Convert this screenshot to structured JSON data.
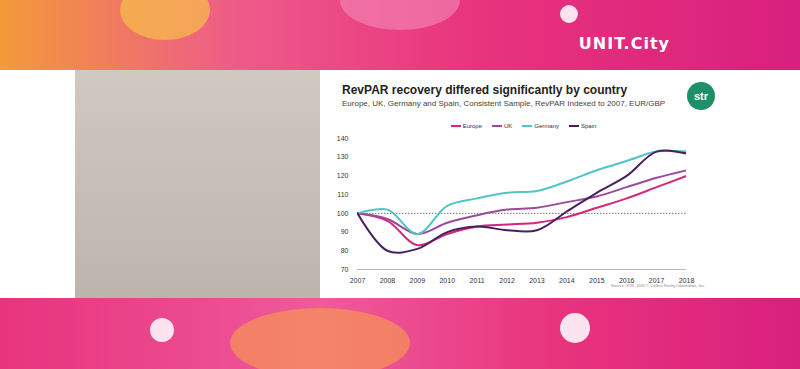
{
  "page": {
    "brand": "UNIT.City",
    "logo": "str",
    "source": "Source: STR. 2020 © CoStar Realty Information, Inc."
  },
  "chart_data": {
    "type": "line",
    "title": "RevPAR recovery differed significantly by country",
    "subtitle": "Europe, UK, Germany and Spain, Consistent Sample, RevPAR Indexed to 2007, EUR/GBP",
    "x": [
      2007,
      2008,
      2009,
      2010,
      2011,
      2012,
      2013,
      2014,
      2015,
      2016,
      2017,
      2018
    ],
    "series": [
      {
        "name": "Europe",
        "color": "#d6257a",
        "values": [
          100,
          96,
          83,
          89,
          93,
          94,
          95,
          98,
          103,
          108,
          114,
          120
        ]
      },
      {
        "name": "UK",
        "color": "#9b4a9a",
        "values": [
          100,
          97,
          89,
          95,
          99,
          102,
          103,
          106,
          109,
          114,
          119,
          123
        ]
      },
      {
        "name": "Germany",
        "color": "#52c4c6",
        "values": [
          100,
          102,
          89,
          104,
          108,
          111,
          112,
          117,
          123,
          128,
          133,
          133
        ]
      },
      {
        "name": "Spain",
        "color": "#4a1f5e",
        "values": [
          100,
          80,
          81,
          90,
          93,
          91,
          91,
          101,
          111,
          120,
          133,
          132
        ]
      }
    ],
    "reference_line": 100,
    "xlim": [
      2007,
      2018
    ],
    "xticks": [
      2007,
      2008,
      2009,
      2010,
      2011,
      2012,
      2013,
      2014,
      2015,
      2016,
      2017,
      2018
    ],
    "ylim": [
      70,
      140
    ],
    "yticks": [
      70,
      80,
      90,
      100,
      110,
      120,
      130,
      140
    ],
    "grid": false,
    "legend": "top"
  }
}
